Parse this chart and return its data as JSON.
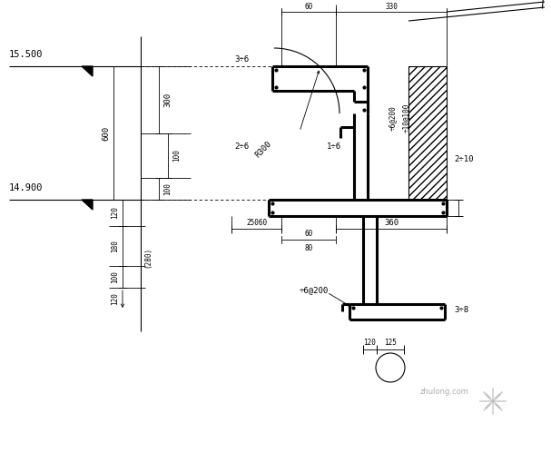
{
  "bg_color": "#ffffff",
  "line_color": "#000000",
  "thick_lw": 2.2,
  "thin_lw": 0.8,
  "dim_lw": 0.6,
  "text_color": "#000000",
  "font_size": 6.5,
  "labels": {
    "elev_top": "15.500",
    "elev_bot": "14.900",
    "d600": "600",
    "d300": "300",
    "d100a": "100",
    "d100b": "100",
    "d120": "120",
    "d180": "180",
    "d100c": "100",
    "d280": "(280)",
    "d60": "60",
    "d330": "330",
    "d376": "3÷6",
    "d276": "2÷6",
    "d176": "1÷6",
    "d2710": "2÷10",
    "d76_200a": "÷6@200",
    "d710_100": "÷10@100",
    "d25060": "25060",
    "d360": "360",
    "d80": "80",
    "d76_200b": "÷6@200",
    "d378": "3÷8",
    "d120b": "120",
    "d125": "125",
    "dR300": "R300"
  }
}
